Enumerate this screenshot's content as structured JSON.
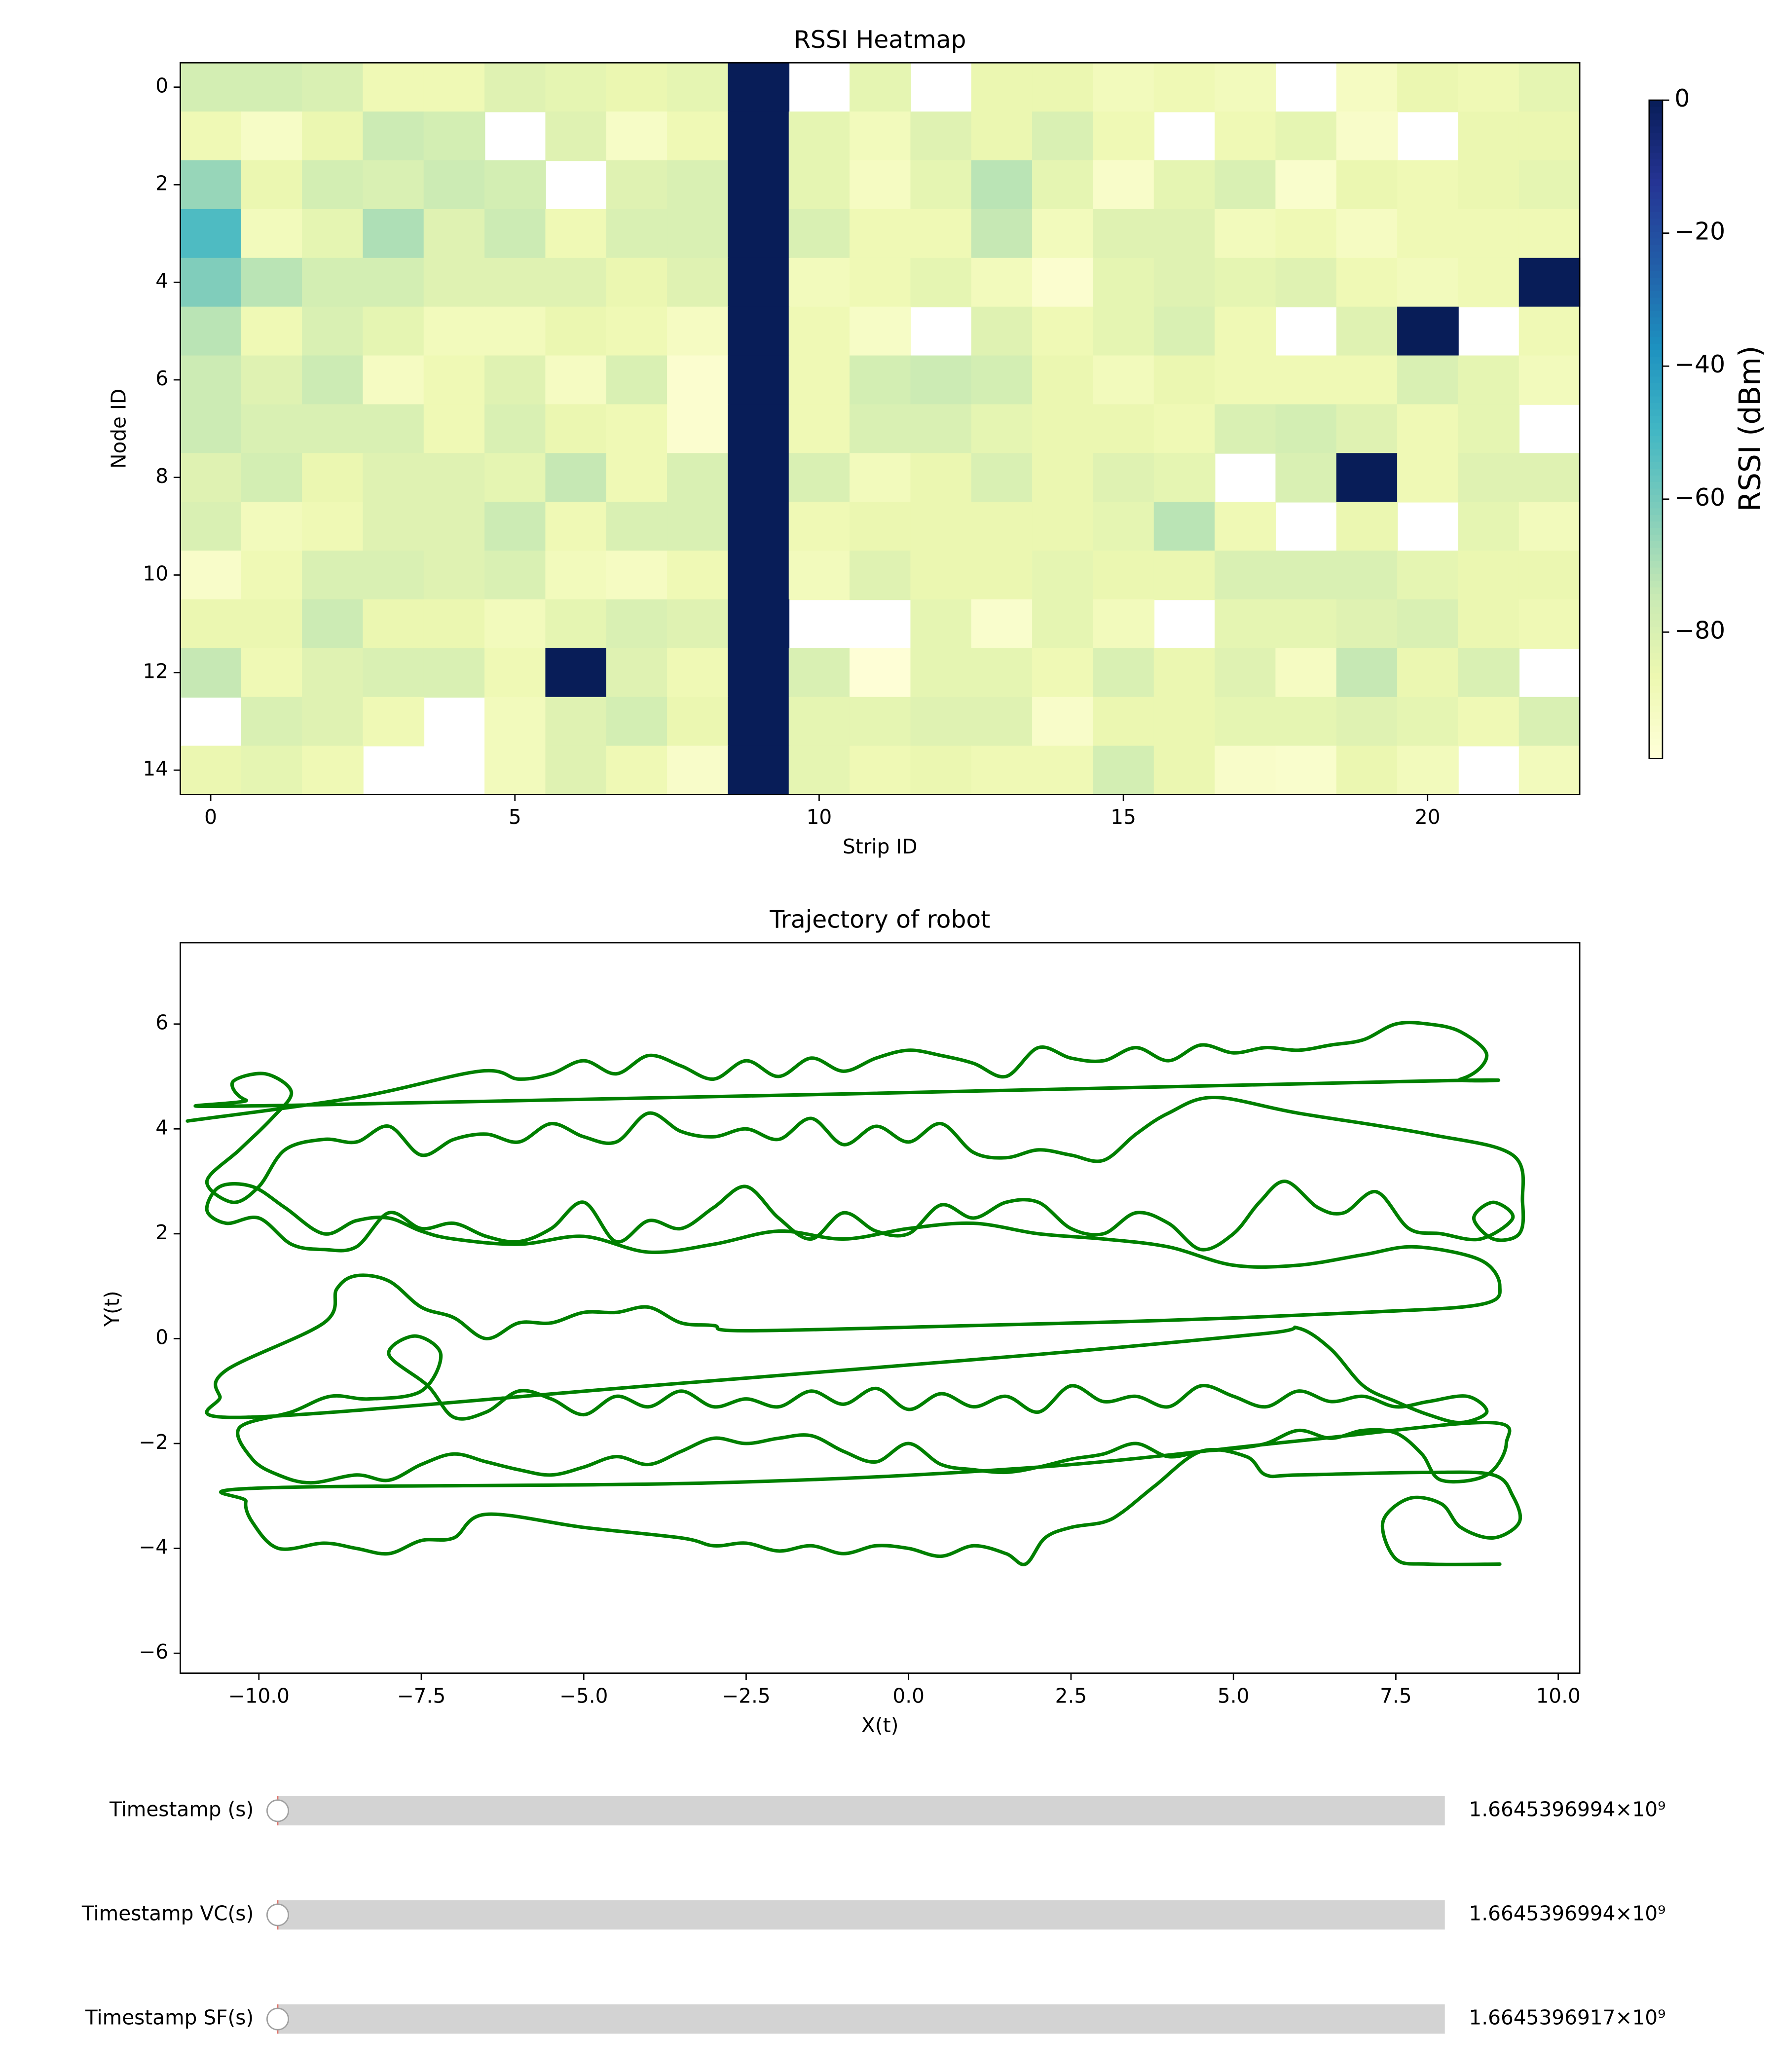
{
  "chart_data": [
    {
      "type": "heatmap",
      "title": "RSSI Heatmap",
      "xlabel": "Strip ID",
      "ylabel": "Node ID",
      "colormap": "YlGnBu",
      "clim": [
        -99,
        0
      ],
      "xlim": [
        -0.5,
        22.5
      ],
      "ylim": [
        14.5,
        -0.5
      ],
      "xticks": [
        0,
        5,
        10,
        15,
        20
      ],
      "yticks": [
        0,
        2,
        4,
        6,
        8,
        10,
        12,
        14
      ],
      "colorbar": {
        "label": "RSSI (dBm)",
        "ticks": [
          0,
          {
            "value": -20,
            "label": "−20"
          },
          {
            "value": -40,
            "label": "−40"
          },
          {
            "value": -60,
            "label": "−60"
          },
          {
            "value": -80,
            "label": "−80"
          }
        ]
      },
      "values": [
        [
          -78,
          -78,
          -80,
          -88,
          -88,
          -82,
          -84,
          -86,
          -84,
          0,
          null,
          -84,
          null,
          -86,
          -86,
          -90,
          -88,
          -90,
          null,
          -92,
          -86,
          -88,
          -84
        ],
        [
          -88,
          -93,
          -86,
          -76,
          -78,
          null,
          -82,
          -93,
          -88,
          0,
          -84,
          -90,
          -82,
          -86,
          -80,
          -88,
          null,
          -88,
          -84,
          -94,
          null,
          -86,
          -86
        ],
        [
          -66,
          -86,
          -78,
          -80,
          -76,
          -78,
          null,
          -82,
          -80,
          0,
          -84,
          -92,
          -84,
          -72,
          -84,
          -94,
          -84,
          -80,
          -95,
          -86,
          -88,
          -86,
          -84
        ],
        [
          -52,
          -90,
          -84,
          -70,
          -82,
          -76,
          -88,
          -80,
          -80,
          0,
          -80,
          -88,
          -88,
          -74,
          -90,
          -82,
          -82,
          -90,
          -88,
          -92,
          -88,
          -88,
          -88
        ],
        [
          -62,
          -72,
          -78,
          -78,
          -82,
          -82,
          -82,
          -86,
          -82,
          0,
          -90,
          -88,
          -84,
          -90,
          -96,
          -84,
          -82,
          -84,
          -82,
          -88,
          -90,
          -88,
          0
        ],
        [
          -72,
          -88,
          -80,
          -84,
          -90,
          -90,
          -86,
          -88,
          -92,
          0,
          -88,
          -93,
          null,
          -82,
          -88,
          -84,
          -80,
          -88,
          null,
          -82,
          0,
          null,
          -88
        ],
        [
          -76,
          -82,
          -76,
          -92,
          -88,
          -82,
          -92,
          -80,
          -96,
          0,
          -88,
          -78,
          -76,
          -78,
          -86,
          -90,
          -86,
          -88,
          -88,
          -88,
          -80,
          -84,
          -90
        ],
        [
          -76,
          -80,
          -80,
          -80,
          -88,
          -80,
          -86,
          -88,
          -96,
          0,
          -88,
          -80,
          -80,
          -84,
          -86,
          -86,
          -88,
          -80,
          -78,
          -82,
          -88,
          -84,
          null
        ],
        [
          -82,
          -78,
          -86,
          -82,
          -82,
          -84,
          -74,
          -88,
          -80,
          0,
          -80,
          -90,
          -86,
          -80,
          -86,
          -82,
          -84,
          null,
          -80,
          0,
          -88,
          -82,
          -82
        ],
        [
          -80,
          -90,
          -88,
          -82,
          -82,
          -76,
          -88,
          -80,
          -80,
          0,
          -88,
          -86,
          -86,
          -86,
          -86,
          -84,
          -72,
          -88,
          null,
          -86,
          null,
          -84,
          -90
        ],
        [
          -94,
          -88,
          -80,
          -80,
          -82,
          -80,
          -90,
          -92,
          -88,
          0,
          -90,
          -82,
          -86,
          -86,
          -84,
          -86,
          -86,
          -80,
          -80,
          -80,
          -84,
          -86,
          -86
        ],
        [
          -86,
          -86,
          -76,
          -86,
          -86,
          -90,
          -84,
          -80,
          -82,
          0,
          null,
          null,
          -84,
          -95,
          -84,
          -90,
          null,
          -84,
          -84,
          -82,
          -80,
          -86,
          -88
        ],
        [
          -74,
          -88,
          -82,
          -80,
          -80,
          -88,
          0,
          -82,
          -88,
          0,
          -80,
          -98,
          -84,
          -84,
          -88,
          -80,
          -86,
          -82,
          -92,
          -74,
          -86,
          -80,
          null
        ],
        [
          null,
          -80,
          -82,
          -88,
          null,
          -90,
          -82,
          -78,
          -86,
          0,
          -84,
          -84,
          -82,
          -82,
          -94,
          -86,
          -86,
          -84,
          -84,
          -82,
          -84,
          -88,
          -80
        ],
        [
          -86,
          -84,
          -88,
          null,
          null,
          -90,
          -82,
          -88,
          -94,
          0,
          -84,
          -88,
          -86,
          -88,
          -88,
          -78,
          -86,
          -94,
          -95,
          -86,
          -90,
          null,
          -90
        ]
      ]
    },
    {
      "type": "line",
      "title": "Trajectory of robot",
      "xlabel": "X(t)",
      "ylabel": "Y(t)",
      "xlim": [
        -11.21,
        10.33
      ],
      "ylim": [
        -6.38,
        7.55
      ],
      "xticks": [
        {
          "value": -10,
          "label": "−10.0"
        },
        {
          "value": -7.5,
          "label": "−7.5"
        },
        {
          "value": -5,
          "label": "−5.0"
        },
        {
          "value": -2.5,
          "label": "−2.5"
        },
        {
          "value": 0,
          "label": "0.0"
        },
        {
          "value": 2.5,
          "label": "2.5"
        },
        {
          "value": 5,
          "label": "5.0"
        },
        {
          "value": 7.5,
          "label": "7.5"
        },
        {
          "value": 10,
          "label": "10.0"
        }
      ],
      "yticks": [
        {
          "value": -6,
          "label": "−6"
        },
        {
          "value": -4,
          "label": "−4"
        },
        {
          "value": -2,
          "label": "−2"
        },
        0,
        2,
        4,
        6
      ],
      "series": [
        {
          "color": "#008000",
          "x": [
            -11.1,
            -8.5,
            -6.6,
            -6,
            -5.5,
            -5,
            -4.5,
            -4,
            -3.5,
            -3,
            -2.5,
            -2,
            -1.5,
            -1,
            -0.5,
            0,
            0.5,
            1,
            1.5,
            2,
            2.5,
            3,
            3.5,
            4,
            4.5,
            5,
            5.5,
            6,
            6.5,
            7,
            7.5,
            8,
            8.5,
            8.9,
            8.5,
            7.5,
            -9.5,
            -10.2,
            -10.4,
            -9.9,
            -9.5,
            -9.8,
            -10.3,
            -10.8,
            -10.4,
            -10,
            -9.6,
            -9,
            -8.5,
            -8,
            -7.5,
            -7,
            -6.5,
            -6,
            -5.5,
            -5,
            -4.5,
            -4,
            -3.5,
            -3,
            -2.5,
            -2,
            -1.5,
            -1,
            -0.5,
            0,
            0.5,
            1,
            1.5,
            2,
            2.5,
            3,
            3.5,
            4,
            4.7,
            6,
            8,
            9.3,
            9.45,
            9.4,
            9,
            8.7,
            9,
            9.3,
            8.8,
            8.2,
            7.7,
            7.2,
            6.7,
            6.3,
            5.8,
            5.4,
            5,
            4.5,
            4,
            3.5,
            3,
            2.5,
            2,
            1.5,
            1,
            0.5,
            0,
            -0.5,
            -1,
            -1.5,
            -2,
            -2.5,
            -3,
            -3.5,
            -4,
            -4.5,
            -5,
            -5.5,
            -6,
            -6.5,
            -7,
            -7.5,
            -8,
            -8.5,
            -9,
            -9.5,
            -10,
            -10.5,
            -10.8,
            -10.6,
            -10.1,
            -9.6,
            -9,
            -8.5,
            -8,
            -7.5,
            -7,
            -6,
            -5,
            -4,
            -3,
            -2,
            -1,
            0,
            1,
            2,
            3,
            4,
            5,
            6,
            7,
            7.8,
            8.8,
            9.1,
            8.8,
            7,
            4,
            1,
            -2.5,
            -3,
            -3.5,
            -4,
            -4.5,
            -5,
            -5.5,
            -6,
            -6.5,
            -7,
            -7.5,
            -8,
            -8.5,
            -8.8,
            -9,
            -10.5,
            -10.6,
            -10.2,
            -4,
            2,
            5.5,
            6,
            6.5,
            7,
            7.5,
            8,
            8.5,
            8.9,
            8.6,
            8,
            7.5,
            7,
            6.5,
            6,
            5.5,
            5,
            4.5,
            4,
            3.5,
            3,
            2.5,
            2,
            1.5,
            1,
            0.5,
            0,
            -0.5,
            -1,
            -1.5,
            -2,
            -2.5,
            -3,
            -3.5,
            -4,
            -4.5,
            -5,
            -5.5,
            -6,
            -6.5,
            -7,
            -7.4,
            -8,
            -7.6,
            -7.2,
            -7.5,
            -8.3,
            -8.9,
            -9.5,
            -10.3,
            -10.1,
            -9.7,
            -9.2,
            -8.5,
            -8,
            -7.5,
            -7,
            -6.5,
            -6,
            -5.5,
            -5,
            -4.5,
            -4,
            -3.5,
            -3,
            -2.5,
            -2,
            -1.5,
            -1,
            -0.5,
            0,
            0.5,
            1,
            1.5,
            2,
            2.5,
            3,
            3.5,
            4,
            4.5,
            5,
            5.5,
            6,
            6.5,
            7,
            7.5,
            7.9,
            8.2,
            8.9,
            9.2,
            8.9,
            6,
            2,
            -3,
            -10,
            -10.2,
            -10.1,
            -9.7,
            -9,
            -8.5,
            -8,
            -7.5,
            -7,
            -6.5,
            -5,
            -3.5,
            -3,
            -2.5,
            -2,
            -1.5,
            -1,
            -0.5,
            0,
            0.5,
            1,
            1.5,
            1.8,
            2.1,
            2.5,
            3,
            3.3,
            3.8,
            4.5,
            5.2,
            5.5,
            6,
            8,
            9,
            9.3,
            9.4,
            9,
            8.5,
            8.2,
            7.7,
            7.3,
            7.5,
            8,
            9.1
          ],
          "y": [
            4.15,
            4.6,
            5.1,
            4.95,
            5.05,
            5.3,
            5.05,
            5.4,
            5.2,
            4.95,
            5.3,
            5.0,
            5.35,
            5.1,
            5.35,
            5.5,
            5.4,
            5.25,
            5.0,
            5.55,
            5.35,
            5.3,
            5.55,
            5.3,
            5.6,
            5.45,
            5.55,
            5.5,
            5.6,
            5.7,
            6.0,
            6.0,
            5.85,
            5.4,
            4.95,
            4.9,
            4.45,
            4.55,
            4.9,
            5.05,
            4.7,
            4.2,
            3.6,
            3.0,
            2.6,
            2.9,
            3.6,
            3.8,
            3.75,
            4.05,
            3.5,
            3.8,
            3.9,
            3.75,
            4.1,
            3.85,
            3.75,
            4.3,
            3.95,
            3.85,
            4.0,
            3.8,
            4.2,
            3.7,
            4.05,
            3.75,
            4.1,
            3.55,
            3.45,
            3.6,
            3.5,
            3.4,
            3.9,
            4.3,
            4.6,
            4.3,
            3.9,
            3.5,
            2.6,
            2.0,
            1.9,
            2.3,
            2.6,
            2.3,
            1.9,
            2.0,
            2.1,
            2.8,
            2.4,
            2.5,
            3.0,
            2.6,
            2.0,
            1.7,
            2.2,
            2.4,
            2.0,
            2.1,
            2.6,
            2.6,
            2.3,
            2.55,
            2.0,
            2.05,
            2.4,
            1.9,
            2.3,
            2.9,
            2.5,
            2.1,
            2.25,
            1.85,
            2.6,
            2.1,
            1.85,
            1.95,
            2.2,
            2.1,
            2.4,
            1.75,
            1.7,
            1.8,
            2.3,
            2.2,
            2.45,
            2.9,
            2.9,
            2.5,
            2.0,
            2.25,
            2.3,
            2.05,
            1.9,
            1.8,
            1.95,
            1.65,
            1.8,
            2.05,
            1.9,
            2.1,
            2.2,
            2.0,
            1.9,
            1.75,
            1.4,
            1.4,
            1.6,
            1.75,
            1.5,
            1.0,
            0.65,
            0.5,
            0.35,
            0.25,
            0.15,
            0.25,
            0.3,
            0.6,
            0.5,
            0.5,
            0.3,
            0.3,
            0.0,
            0.4,
            0.6,
            1.1,
            1.2,
            0.95,
            0.3,
            -0.6,
            -1.1,
            -1.5,
            -0.9,
            -0.3,
            0.1,
            0.2,
            -0.2,
            -0.9,
            -1.2,
            -1.45,
            -1.6,
            -1.4,
            -1.1,
            -1.2,
            -1.3,
            -1.1,
            -1.2,
            -1.0,
            -1.3,
            -1.1,
            -0.9,
            -1.3,
            -1.1,
            -1.2,
            -0.9,
            -1.4,
            -1.1,
            -1.3,
            -1.05,
            -1.35,
            -0.95,
            -1.25,
            -1.0,
            -1.3,
            -1.15,
            -1.3,
            -1.0,
            -1.3,
            -1.1,
            -1.45,
            -1.15,
            -1.0,
            -1.4,
            -1.5,
            -0.9,
            -0.3,
            0.05,
            -0.3,
            -1.0,
            -1.15,
            -1.1,
            -1.4,
            -1.7,
            -2.3,
            -2.6,
            -2.75,
            -2.6,
            -2.7,
            -2.4,
            -2.2,
            -2.35,
            -2.5,
            -2.6,
            -2.45,
            -2.25,
            -2.4,
            -2.15,
            -1.9,
            -2.0,
            -1.9,
            -1.85,
            -2.15,
            -2.35,
            -2.0,
            -2.4,
            -2.5,
            -2.55,
            -2.45,
            -2.3,
            -2.2,
            -2.0,
            -2.25,
            -2.15,
            -2.1,
            -2.0,
            -1.75,
            -1.9,
            -1.75,
            -1.8,
            -2.2,
            -2.7,
            -2.6,
            -2.0,
            -1.6,
            -1.95,
            -2.45,
            -2.75,
            -2.85,
            -3.1,
            -3.5,
            -4.0,
            -3.9,
            -4.0,
            -4.1,
            -3.85,
            -3.8,
            -3.35,
            -3.6,
            -3.8,
            -3.95,
            -3.9,
            -4.05,
            -3.95,
            -4.1,
            -3.95,
            -4.0,
            -4.15,
            -3.95,
            -4.1,
            -4.3,
            -3.8,
            -3.6,
            -3.5,
            -3.3,
            -2.8,
            -2.15,
            -2.25,
            -2.6,
            -2.6,
            -2.55,
            -2.6,
            -3.0,
            -3.5,
            -3.8,
            -3.6,
            -3.15,
            -3.05,
            -3.5,
            -4.2,
            -4.3,
            -4.3
          ]
        }
      ]
    }
  ],
  "sliders": [
    {
      "label": "Timestamp (s)",
      "value": 1664539699.4,
      "value_label": "1.6645396994×10⁹"
    },
    {
      "label": "Timestamp VC(s)",
      "value": 1664539699.4,
      "value_label": "1.6645396994×10⁹"
    },
    {
      "label": "Timestamp SF(s)",
      "value": 1664539691.7,
      "value_label": "1.6645396917×10⁹"
    }
  ]
}
